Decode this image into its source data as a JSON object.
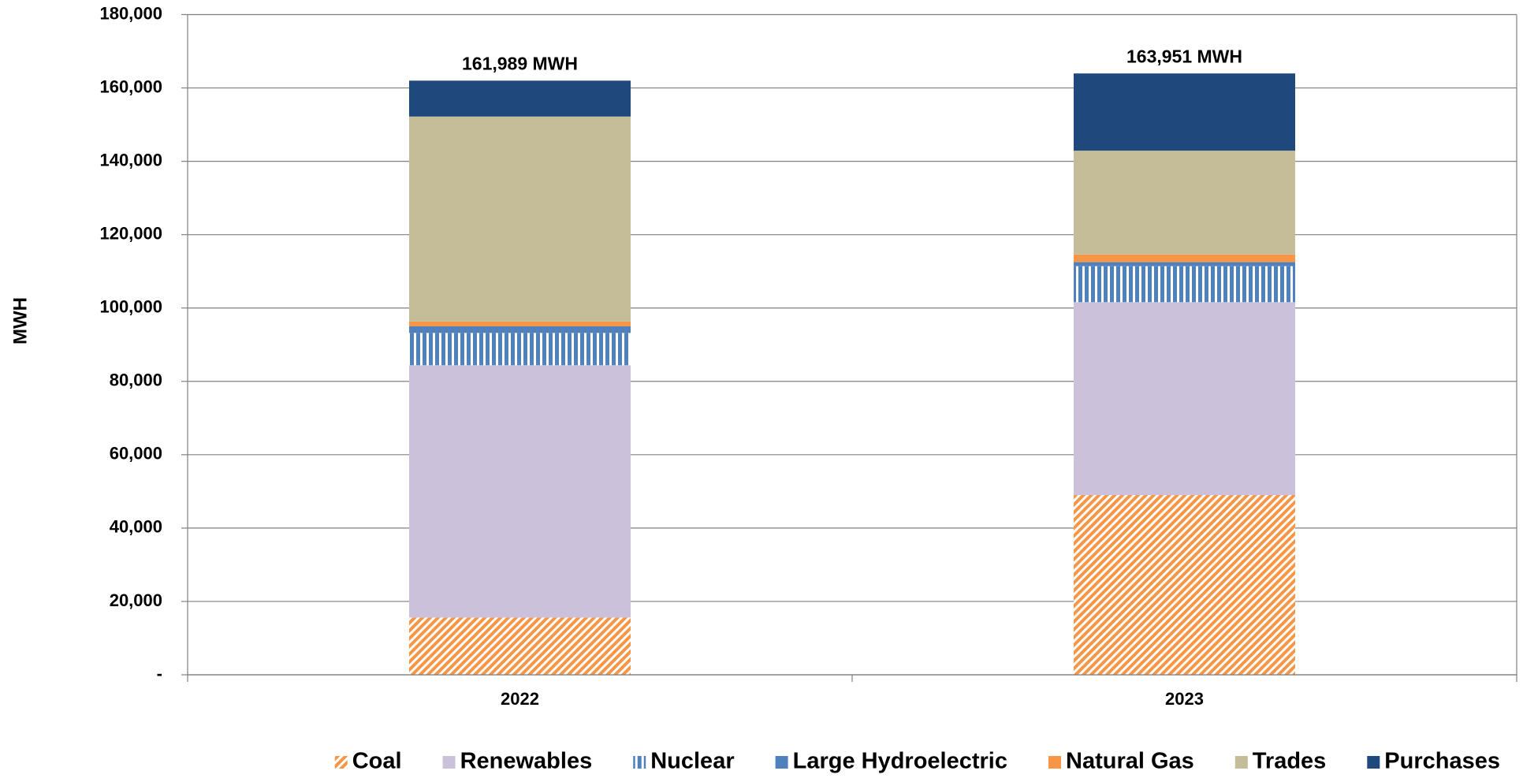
{
  "chart_data": {
    "type": "stacked-bar",
    "y_label": "MWH",
    "categories": [
      "2022",
      "2023"
    ],
    "series": [
      {
        "name": "Coal",
        "color": "#f79646",
        "hatch": "diagonal",
        "values": [
          15600,
          49000
        ]
      },
      {
        "name": "Renewables",
        "color": "#ccc1da",
        "values": [
          68800,
          52600
        ]
      },
      {
        "name": "Nuclear",
        "color": "#4f81bd",
        "hatch": "vertical",
        "values": [
          8800,
          9800
        ]
      },
      {
        "name": "Large Hydroelectric",
        "color": "#4f81bd",
        "values": [
          1800,
          1100
        ]
      },
      {
        "name": "Natural Gas",
        "color": "#f79646",
        "values": [
          1300,
          2100
        ]
      },
      {
        "name": "Trades",
        "color": "#c4bd97",
        "values": [
          55900,
          28300
        ]
      },
      {
        "name": "Purchases",
        "color": "#1f497d",
        "values": [
          9789,
          21051
        ]
      }
    ],
    "totals": {
      "values": [
        161989,
        163951
      ],
      "value_labels": [
        "161,989 MWH",
        "163,951 MWH"
      ]
    },
    "ylim": [
      0,
      180000
    ],
    "yticks": [
      {
        "value": 0,
        "label": "-"
      },
      {
        "value": 20000,
        "label": "20,000"
      },
      {
        "value": 40000,
        "label": "40,000"
      },
      {
        "value": 60000,
        "label": "60,000"
      },
      {
        "value": 80000,
        "label": "80,000"
      },
      {
        "value": 100000,
        "label": "100,000"
      },
      {
        "value": 120000,
        "label": "120,000"
      },
      {
        "value": 140000,
        "label": "140,000"
      },
      {
        "value": 160000,
        "label": "160,000"
      },
      {
        "value": 180000,
        "label": "180,000"
      }
    ],
    "grid": true,
    "legend": "bottom"
  }
}
